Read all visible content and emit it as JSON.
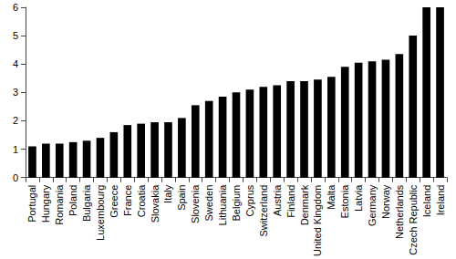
{
  "chart_data": {
    "type": "bar",
    "categories": [
      "Portugal",
      "Hungary",
      "Romania",
      "Poland",
      "Bulgaria",
      "Luxembourg",
      "Greece",
      "France",
      "Croatia",
      "Slovakia",
      "Italy",
      "Spain",
      "Slovenia",
      "Sweden",
      "Lithuania",
      "Belgium",
      "Cyprus",
      "Switzerland",
      "Austria",
      "Finland",
      "Denmark",
      "United Kingdom",
      "Malta",
      "Estonia",
      "Latvia",
      "Germany",
      "Norway",
      "Netherlands",
      "Czech Republic",
      "Iceland",
      "Ireland"
    ],
    "values": [
      1.1,
      1.2,
      1.2,
      1.25,
      1.3,
      1.4,
      1.6,
      1.85,
      1.9,
      1.95,
      1.95,
      2.1,
      2.55,
      2.7,
      2.85,
      3.0,
      3.1,
      3.2,
      3.25,
      3.4,
      3.4,
      3.45,
      3.55,
      3.9,
      4.05,
      4.1,
      4.15,
      4.35,
      5.0,
      6.0,
      6.0
    ],
    "color": "#000000",
    "ylim": [
      0,
      6
    ],
    "yticks": [
      0,
      1,
      2,
      3,
      4,
      5,
      6
    ],
    "grid": false
  }
}
